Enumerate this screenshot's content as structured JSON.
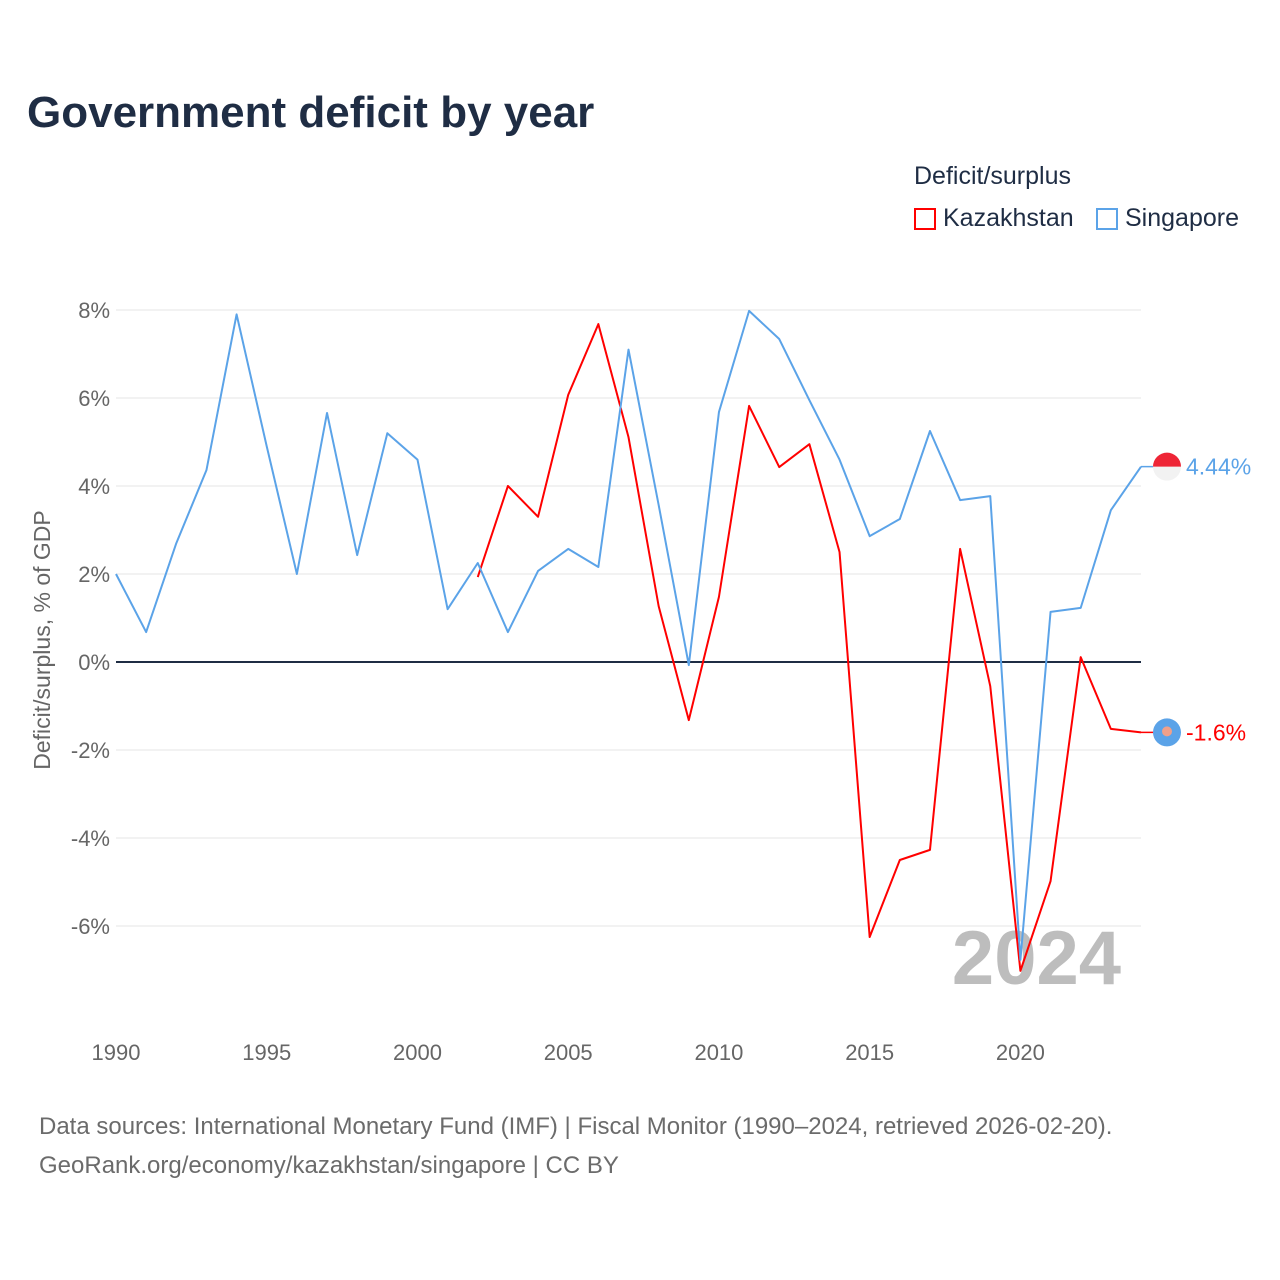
{
  "chart_data": {
    "type": "line",
    "title": "Government deficit by year",
    "xlabel": "",
    "ylabel": "Deficit/surplus, % of GDP",
    "xlim": [
      1990,
      2024
    ],
    "ylim": [
      -8,
      8.3
    ],
    "xticks": [
      1990,
      1995,
      2000,
      2005,
      2010,
      2015,
      2020
    ],
    "xtick_labels": [
      "1990",
      "1995",
      "2000",
      "2005",
      "2010",
      "2015",
      "2020"
    ],
    "yticks": [
      -6,
      -4,
      -2,
      0,
      2,
      4,
      6,
      8
    ],
    "ytick_labels": [
      "-6%",
      "-4%",
      "-2%",
      "0%",
      "2%",
      "4%",
      "6%",
      "8%"
    ],
    "grid": true,
    "legend_title": "Deficit/surplus",
    "legend_position": "top-right",
    "year_watermark": "2024",
    "series": [
      {
        "name": "Kazakhstan",
        "color": "#ff0000",
        "end_label": "-1.6%",
        "x": [
          2002,
          2003,
          2004,
          2005,
          2006,
          2007,
          2008,
          2009,
          2010,
          2011,
          2012,
          2013,
          2014,
          2015,
          2016,
          2017,
          2018,
          2019,
          2020,
          2021,
          2022,
          2023,
          2024
        ],
        "values": [
          1.93,
          4.0,
          3.3,
          6.07,
          7.68,
          5.11,
          1.27,
          -1.32,
          1.48,
          5.82,
          4.43,
          4.95,
          2.5,
          -6.25,
          -4.5,
          -4.27,
          2.57,
          -0.55,
          -7.02,
          -4.98,
          0.11,
          -1.52,
          -1.6
        ]
      },
      {
        "name": "Singapore",
        "color": "#5ba3e8",
        "end_label": "4.44%",
        "x": [
          1990,
          1991,
          1992,
          1993,
          1994,
          1995,
          1996,
          1997,
          1998,
          1999,
          2000,
          2001,
          2002,
          2003,
          2004,
          2005,
          2006,
          2007,
          2008,
          2009,
          2010,
          2011,
          2012,
          2013,
          2014,
          2015,
          2016,
          2017,
          2018,
          2019,
          2020,
          2021,
          2022,
          2023,
          2024
        ],
        "values": [
          2.0,
          0.68,
          2.7,
          4.36,
          7.9,
          4.9,
          2.0,
          5.66,
          2.43,
          5.2,
          4.6,
          1.2,
          2.25,
          0.68,
          2.07,
          2.57,
          2.16,
          7.1,
          3.57,
          -0.07,
          5.68,
          7.98,
          7.34,
          5.95,
          4.6,
          2.86,
          3.25,
          5.25,
          3.68,
          3.77,
          -6.77,
          1.14,
          1.23,
          3.45,
          4.44
        ]
      }
    ],
    "source": "Data sources: International Monetary Fund (IMF) | Fiscal Monitor (1990–2024, retrieved 2026-02-20).",
    "source_line2": "GeoRank.org/economy/kazakhstan/singapore | CC BY"
  }
}
